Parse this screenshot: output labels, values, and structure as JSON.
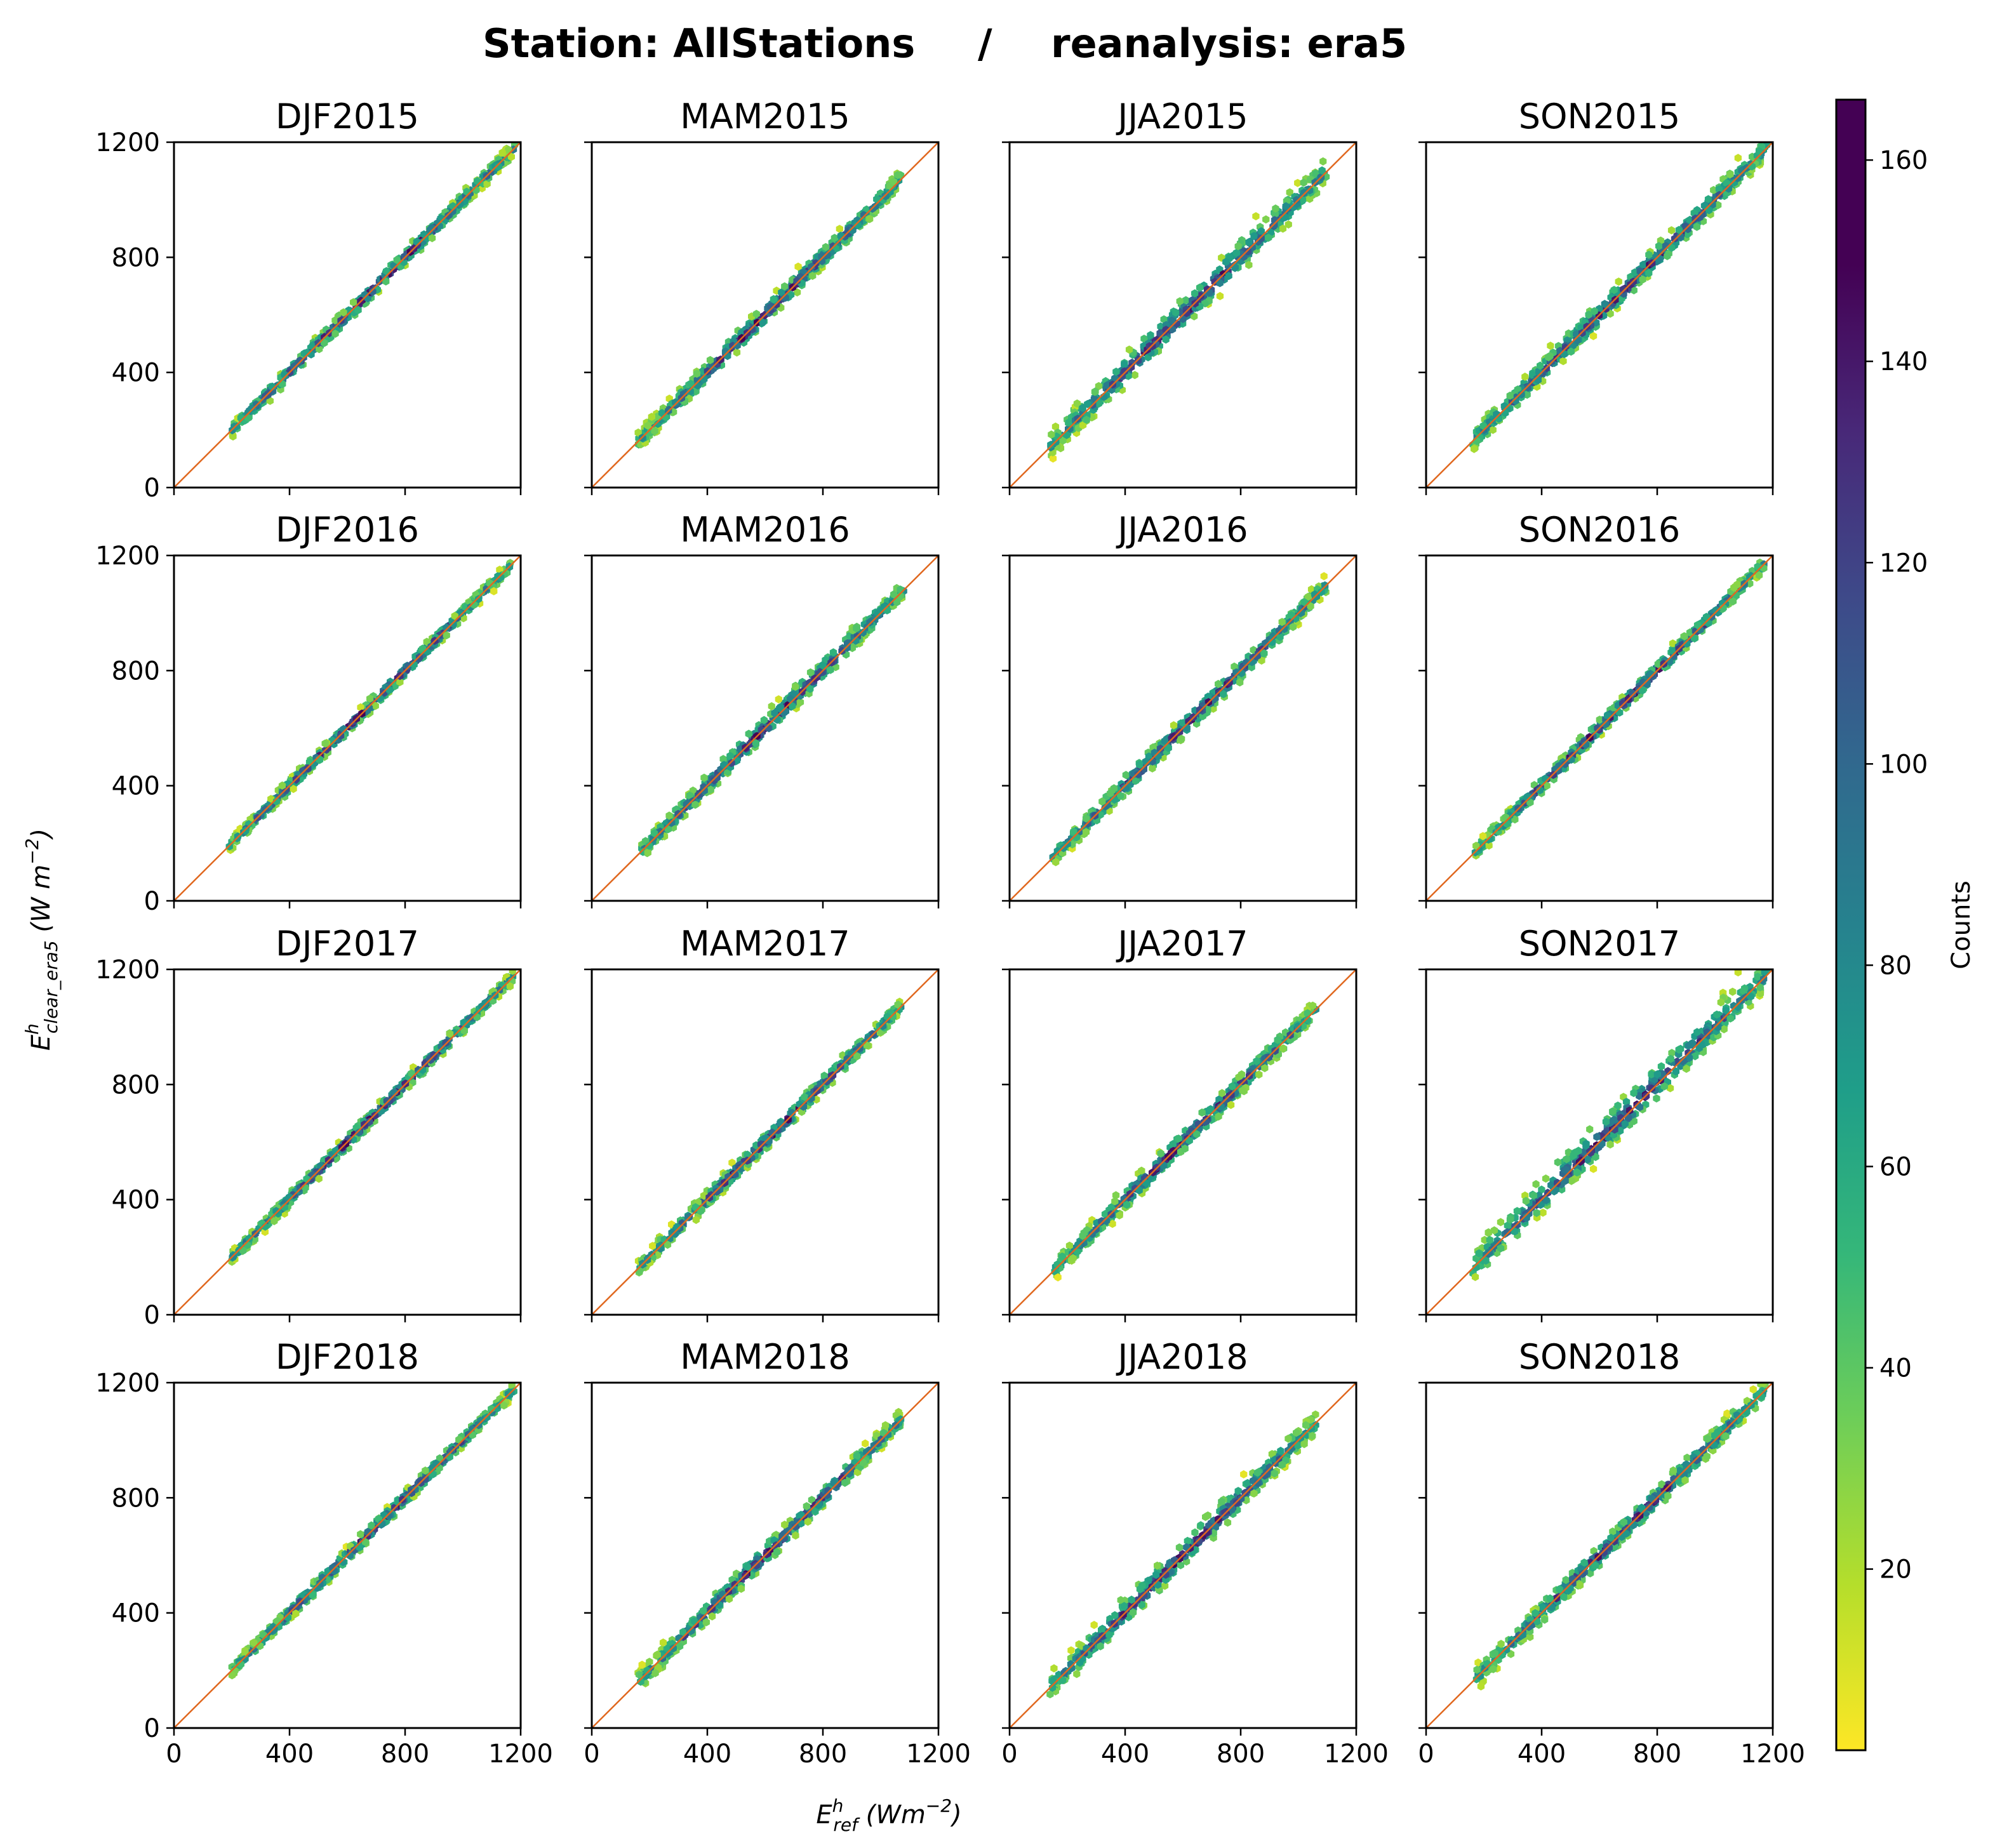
{
  "chart_data": {
    "type": "hexbin",
    "title": {
      "station": "Station: AllStations",
      "separator": "/",
      "reanalysis": "reanalysis: era5"
    },
    "xlabel": {
      "main": "E",
      "sup": "h",
      "sub": "ref",
      "units": " (Wm",
      "exp": "−2",
      "close": ")"
    },
    "ylabel": {
      "main": "E",
      "sup": "h",
      "sub": "clear_era5",
      "units": " (W m",
      "exp": "−2",
      "close": ")"
    },
    "xlim": [
      0,
      1200
    ],
    "ylim": [
      0,
      1200
    ],
    "xticks": [
      "0",
      "400",
      "800",
      "1200"
    ],
    "yticks": [
      "0",
      "400",
      "800",
      "1200"
    ],
    "reference_line": "y = x",
    "colorbar": {
      "label": "Counts",
      "range": [
        2,
        166
      ],
      "ticks": [
        "20",
        "40",
        "60",
        "80",
        "100",
        "120",
        "140",
        "160"
      ],
      "colormap": "viridis_r"
    },
    "panels": [
      {
        "title": "DJF2015",
        "x_range": [
          200,
          1180
        ],
        "spread": 30,
        "upper_bias": 0
      },
      {
        "title": "MAM2015",
        "x_range": [
          160,
          1070
        ],
        "spread": 35,
        "upper_bias": 10
      },
      {
        "title": "JJA2015",
        "x_range": [
          140,
          1100
        ],
        "spread": 50,
        "upper_bias": 25
      },
      {
        "title": "SON2015",
        "x_range": [
          160,
          1180
        ],
        "spread": 40,
        "upper_bias": 15
      },
      {
        "title": "DJF2016",
        "x_range": [
          190,
          1170
        ],
        "spread": 25,
        "upper_bias": 0
      },
      {
        "title": "MAM2016",
        "x_range": [
          160,
          1080
        ],
        "spread": 35,
        "upper_bias": 15
      },
      {
        "title": "JJA2016",
        "x_range": [
          150,
          1100
        ],
        "spread": 38,
        "upper_bias": 5
      },
      {
        "title": "SON2016",
        "x_range": [
          170,
          1170
        ],
        "spread": 30,
        "upper_bias": 5
      },
      {
        "title": "DJF2017",
        "x_range": [
          200,
          1180
        ],
        "spread": 28,
        "upper_bias": 0
      },
      {
        "title": "MAM2017",
        "x_range": [
          160,
          1070
        ],
        "spread": 30,
        "upper_bias": 5
      },
      {
        "title": "JJA2017",
        "x_range": [
          150,
          1060
        ],
        "spread": 38,
        "upper_bias": 10
      },
      {
        "title": "SON2017",
        "x_range": [
          160,
          1180
        ],
        "spread": 55,
        "upper_bias": 40
      },
      {
        "title": "DJF2018",
        "x_range": [
          200,
          1180
        ],
        "spread": 28,
        "upper_bias": 0
      },
      {
        "title": "MAM2018",
        "x_range": [
          160,
          1070
        ],
        "spread": 35,
        "upper_bias": 10
      },
      {
        "title": "JJA2018",
        "x_range": [
          140,
          1060
        ],
        "spread": 45,
        "upper_bias": 20
      },
      {
        "title": "SON2018",
        "x_range": [
          170,
          1180
        ],
        "spread": 40,
        "upper_bias": 10
      }
    ]
  }
}
